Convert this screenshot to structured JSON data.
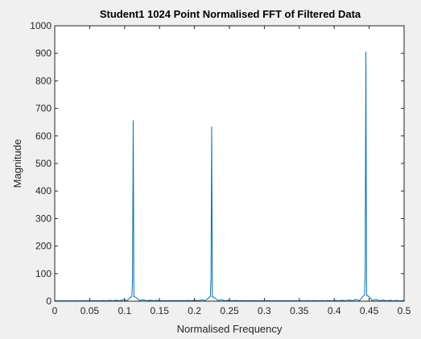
{
  "chart_data": {
    "type": "line",
    "title": "Student1 1024 Point Normalised FFT of Filtered Data",
    "xlabel": "Normalised Frequency",
    "ylabel": "Magnitude",
    "xlim": [
      0,
      0.5
    ],
    "ylim": [
      0,
      1000
    ],
    "xticks": [
      0,
      0.05,
      0.1,
      0.15,
      0.2,
      0.25,
      0.3,
      0.35,
      0.4,
      0.45,
      0.5
    ],
    "xtick_labels": [
      "0",
      "0.05",
      "0.1",
      "0.15",
      "0.2",
      "0.25",
      "0.3",
      "0.35",
      "0.4",
      "0.45",
      "0.5"
    ],
    "yticks": [
      0,
      100,
      200,
      300,
      400,
      500,
      600,
      700,
      800,
      900,
      1000
    ],
    "ytick_labels": [
      "0",
      "100",
      "200",
      "300",
      "400",
      "500",
      "600",
      "700",
      "800",
      "900",
      "1000"
    ],
    "grid": false,
    "line_color": "#0072bd",
    "peaks": [
      {
        "x": 0.1123,
        "y": 655
      },
      {
        "x": 0.2246,
        "y": 633
      },
      {
        "x": 0.4453,
        "y": 905
      }
    ]
  }
}
